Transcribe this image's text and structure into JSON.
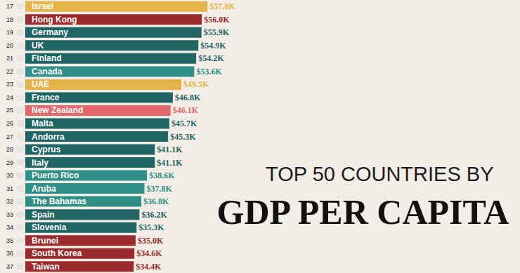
{
  "chart_data": {
    "type": "bar",
    "orientation": "horizontal",
    "title": "GDP PER CAPITA",
    "subtitle": "TOP 50 COUNTRIES BY",
    "ranks": [
      17,
      18,
      19,
      20,
      21,
      22,
      23,
      24,
      25,
      26,
      27,
      28,
      29,
      30,
      31,
      32,
      33,
      34,
      35,
      36,
      37
    ],
    "categories": [
      "Israel",
      "Hong Kong",
      "Germany",
      "UK",
      "Finland",
      "Canada",
      "UAE",
      "France",
      "New Zealand",
      "Malta",
      "Andorra",
      "Cyprus",
      "Italy",
      "Puerto Rico",
      "Aruba",
      "The Bahamas",
      "Spain",
      "Slovenia",
      "Brunei",
      "South Korea",
      "Taiwan"
    ],
    "values": [
      57.8,
      56.0,
      55.9,
      54.9,
      54.2,
      53.6,
      49.5,
      46.8,
      46.1,
      45.7,
      45.3,
      41.1,
      41.1,
      38.6,
      37.8,
      36.8,
      36.2,
      35.3,
      35.0,
      34.6,
      34.4
    ],
    "value_labels": [
      "$57.8K",
      "$56.0K",
      "$55.9K",
      "$54.9K",
      "$54.2K",
      "$53.6K",
      "$49.5K",
      "$46.8K",
      "$46.1K",
      "$45.7K",
      "$45.3K",
      "$41.1K",
      "$41.1K",
      "$38.6K",
      "$37.8K",
      "$36.8K",
      "$36.2K",
      "$35.3K",
      "$35.0K",
      "$34.6K",
      "$34.4K"
    ],
    "colors": [
      "#e6b24a",
      "#9b2a2c",
      "#1e6563",
      "#1e6563",
      "#1e6563",
      "#2f8f86",
      "#e6b24a",
      "#1e6563",
      "#e4686b",
      "#1e6563",
      "#1e6563",
      "#1e6563",
      "#1e6563",
      "#2f8f86",
      "#2f8f86",
      "#2f8f86",
      "#1e6563",
      "#1e6563",
      "#9b2a2c",
      "#9b2a2c",
      "#9b2a2c"
    ],
    "xlim": [
      0,
      70
    ],
    "data_labels": true,
    "tick_labels": false,
    "grid": false
  }
}
